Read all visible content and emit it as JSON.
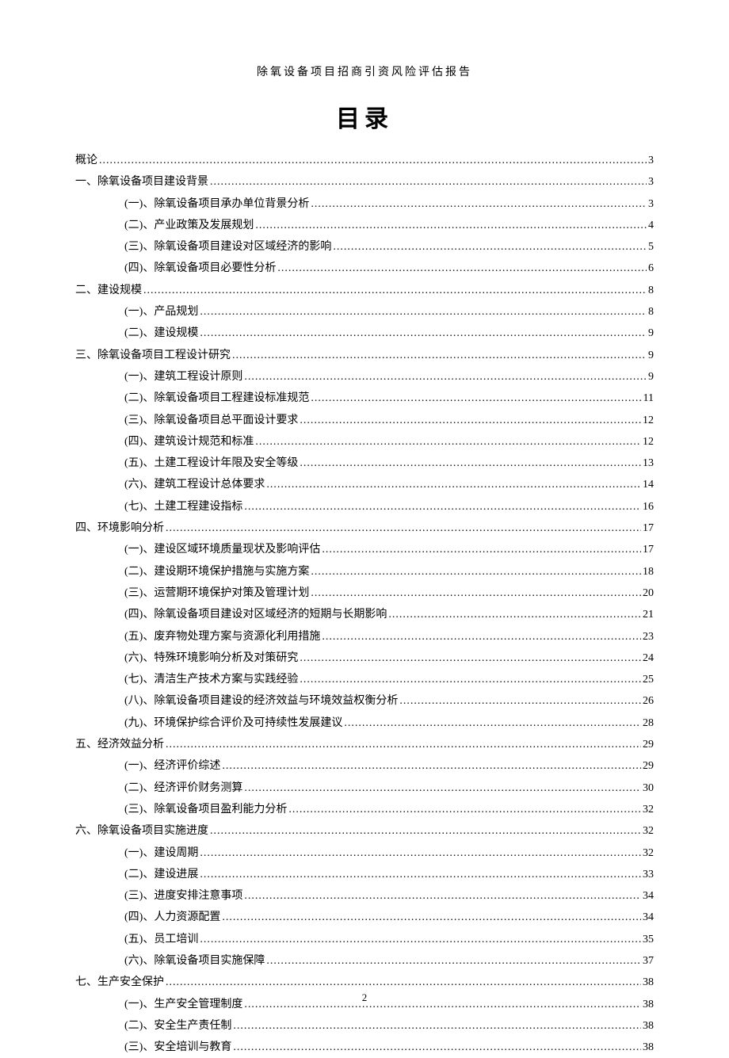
{
  "header_title": "除氧设备项目招商引资风险评估报告",
  "main_title": "目录",
  "page_number": "2",
  "toc": [
    {
      "level": 0,
      "label": "概论",
      "page": "3"
    },
    {
      "level": 0,
      "label": "一、除氧设备项目建设背景",
      "page": "3"
    },
    {
      "level": 1,
      "label": "(一)、除氧设备项目承办单位背景分析",
      "page": "3"
    },
    {
      "level": 1,
      "label": "(二)、产业政策及发展规划",
      "page": "4"
    },
    {
      "level": 1,
      "label": "(三)、除氧设备项目建设对区域经济的影响",
      "page": "5"
    },
    {
      "level": 1,
      "label": "(四)、除氧设备项目必要性分析",
      "page": "6"
    },
    {
      "level": 0,
      "label": "二、建设规模",
      "page": "8"
    },
    {
      "level": 1,
      "label": "(一)、产品规划",
      "page": "8"
    },
    {
      "level": 1,
      "label": "(二)、建设规模",
      "page": "9"
    },
    {
      "level": 0,
      "label": "三、除氧设备项目工程设计研究",
      "page": "9"
    },
    {
      "level": 1,
      "label": "(一)、建筑工程设计原则",
      "page": "9"
    },
    {
      "level": 1,
      "label": "(二)、除氧设备项目工程建设标准规范",
      "page": "11"
    },
    {
      "level": 1,
      "label": "(三)、除氧设备项目总平面设计要求",
      "page": "12"
    },
    {
      "level": 1,
      "label": "(四)、建筑设计规范和标准",
      "page": "12"
    },
    {
      "level": 1,
      "label": "(五)、土建工程设计年限及安全等级",
      "page": "13"
    },
    {
      "level": 1,
      "label": "(六)、建筑工程设计总体要求",
      "page": "14"
    },
    {
      "level": 1,
      "label": "(七)、土建工程建设指标",
      "page": "16"
    },
    {
      "level": 0,
      "label": "四、环境影响分析",
      "page": "17"
    },
    {
      "level": 1,
      "label": "(一)、建设区域环境质量现状及影响评估",
      "page": "17"
    },
    {
      "level": 1,
      "label": "(二)、建设期环境保护措施与实施方案",
      "page": "18"
    },
    {
      "level": 1,
      "label": "(三)、运营期环境保护对策及管理计划",
      "page": "20"
    },
    {
      "level": 1,
      "label": "(四)、除氧设备项目建设对区域经济的短期与长期影响",
      "page": "21"
    },
    {
      "level": 1,
      "label": "(五)、废弃物处理方案与资源化利用措施",
      "page": "23"
    },
    {
      "level": 1,
      "label": "(六)、特殊环境影响分析及对策研究",
      "page": "24"
    },
    {
      "level": 1,
      "label": "(七)、清洁生产技术方案与实践经验",
      "page": "25"
    },
    {
      "level": 1,
      "label": "(八)、除氧设备项目建设的经济效益与环境效益权衡分析",
      "page": "26"
    },
    {
      "level": 1,
      "label": "(九)、环境保护综合评价及可持续性发展建议",
      "page": "28"
    },
    {
      "level": 0,
      "label": "五、经济效益分析",
      "page": "29"
    },
    {
      "level": 1,
      "label": "(一)、经济评价综述",
      "page": "29"
    },
    {
      "level": 1,
      "label": "(二)、经济评价财务测算",
      "page": "30"
    },
    {
      "level": 1,
      "label": "(三)、除氧设备项目盈利能力分析",
      "page": "32"
    },
    {
      "level": 0,
      "label": "六、除氧设备项目实施进度",
      "page": "32"
    },
    {
      "level": 1,
      "label": "(一)、建设周期",
      "page": "32"
    },
    {
      "level": 1,
      "label": "(二)、建设进展",
      "page": "33"
    },
    {
      "level": 1,
      "label": "(三)、进度安排注意事项",
      "page": "34"
    },
    {
      "level": 1,
      "label": "(四)、人力资源配置",
      "page": "34"
    },
    {
      "level": 1,
      "label": "(五)、员工培训",
      "page": "35"
    },
    {
      "level": 1,
      "label": "(六)、除氧设备项目实施保障",
      "page": "37"
    },
    {
      "level": 0,
      "label": "七、生产安全保护",
      "page": "38"
    },
    {
      "level": 1,
      "label": "(一)、生产安全管理制度",
      "page": "38"
    },
    {
      "level": 1,
      "label": "(二)、安全生产责任制",
      "page": "38"
    },
    {
      "level": 1,
      "label": "(三)、安全培训与教育",
      "page": "38"
    }
  ]
}
